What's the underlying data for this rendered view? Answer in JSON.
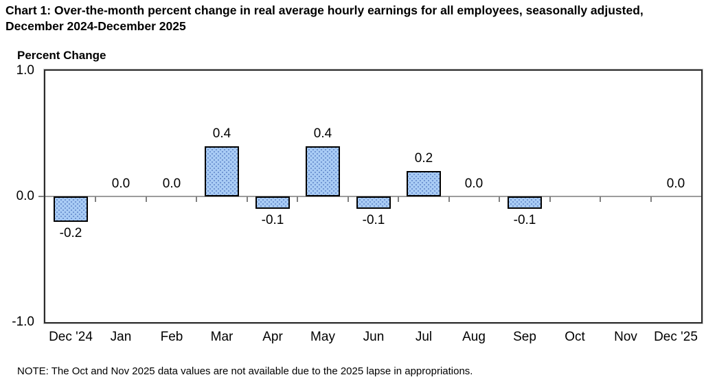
{
  "title": "Chart 1: Over-the-month percent change in real average hourly earnings for all employees, seasonally adjusted, December 2024-December 2025",
  "y_axis_title": "Percent Change",
  "note": "NOTE: The Oct and Nov 2025 data values are not available due to the 2025 lapse in appropriations.",
  "colors": {
    "bar_fill": "#a9ccf5",
    "bar_dots": "#6e93d1",
    "bar_border": "#000000",
    "zero_line": "#9c9c9c",
    "tick": "#808080",
    "plot_border": "#2b2b2b",
    "text": "#000000"
  },
  "chart_data": {
    "type": "bar",
    "title": "Chart 1: Over-the-month percent change in real average hourly earnings for all employees, seasonally adjusted, December 2024-December 2025",
    "xlabel": "",
    "ylabel": "Percent Change",
    "categories": [
      "Dec '24",
      "Jan",
      "Feb",
      "Mar",
      "Apr",
      "May",
      "Jun",
      "Jul",
      "Aug",
      "Sep",
      "Oct",
      "Nov",
      "Dec '25"
    ],
    "values": [
      -0.2,
      0.0,
      0.0,
      0.4,
      -0.1,
      0.4,
      -0.1,
      0.2,
      0.0,
      -0.1,
      null,
      null,
      0.0
    ],
    "value_labels": [
      "-0.2",
      "0.0",
      "0.0",
      "0.4",
      "-0.1",
      "0.4",
      "-0.1",
      "0.2",
      "0.0",
      "-0.1",
      null,
      null,
      "0.0"
    ],
    "missing_categories": [
      "Oct",
      "Nov"
    ],
    "ylim": [
      -1.0,
      1.0
    ],
    "yticks": [
      {
        "label": "1.0",
        "value": 1.0
      },
      {
        "label": "0.0",
        "value": 0.0
      },
      {
        "label": "-1.0",
        "value": -1.0
      }
    ],
    "grid": false,
    "legend": null
  }
}
